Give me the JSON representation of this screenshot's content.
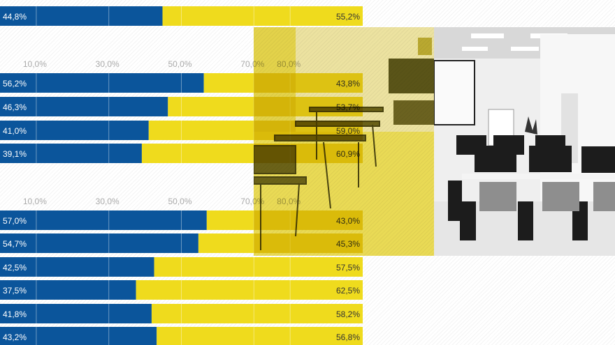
{
  "chart_data": {
    "type": "bar",
    "stacked": true,
    "orientation": "horizontal",
    "xlim": [
      0,
      100
    ],
    "tick_labels": [
      "10,0%",
      "30,0%",
      "50,0%",
      "70,0%",
      "80,0%"
    ],
    "tick_values": [
      10,
      30,
      50,
      70,
      80
    ],
    "colors": {
      "series1": "#0b559b",
      "series2": "#efdb1d"
    },
    "groups": [
      {
        "rows": [
          {
            "a": 44.8,
            "b": 55.2,
            "a_label": "44,8%",
            "b_label": "55,2%"
          }
        ]
      },
      {
        "rows": [
          {
            "a": 56.2,
            "b": 43.8,
            "a_label": "56,2%",
            "b_label": "43,8%"
          },
          {
            "a": 46.3,
            "b": 53.7,
            "a_label": "46,3%",
            "b_label": "53,7%"
          },
          {
            "a": 41.0,
            "b": 59.0,
            "a_label": "41,0%",
            "b_label": "59,0%"
          },
          {
            "a": 39.1,
            "b": 60.9,
            "a_label": "39,1%",
            "b_label": "60,9%"
          }
        ]
      },
      {
        "rows": [
          {
            "a": 57.0,
            "b": 43.0,
            "a_label": "57,0%",
            "b_label": "43,0%"
          },
          {
            "a": 54.7,
            "b": 45.3,
            "a_label": "54,7%",
            "b_label": "45,3%"
          },
          {
            "a": 42.5,
            "b": 57.5,
            "a_label": "42,5%",
            "b_label": "57,5%"
          },
          {
            "a": 37.5,
            "b": 62.5,
            "a_label": "37,5%",
            "b_label": "62,5%"
          },
          {
            "a": 41.8,
            "b": 58.2,
            "a_label": "41,8%",
            "b_label": "58,2%"
          },
          {
            "a": 43.2,
            "b": 56.8,
            "a_label": "43,2%",
            "b_label": "56,8%"
          }
        ]
      }
    ]
  },
  "photos": [
    {
      "subject": "classroom-desks",
      "tint": "#e6d41a"
    },
    {
      "subject": "computer-lab",
      "tint": "grayscale"
    }
  ]
}
